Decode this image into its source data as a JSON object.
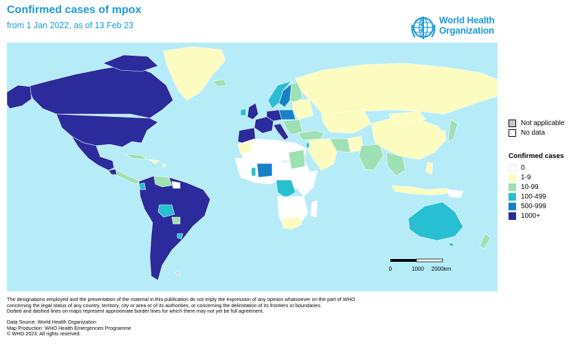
{
  "header": {
    "title": "Confirmed cases of mpox",
    "subtitle": "from 1 Jan 2022, as of 13 Feb 23"
  },
  "logo": {
    "line1": "World Health",
    "line2": "Organization",
    "icon": "who-emblem-icon"
  },
  "legend": {
    "other": [
      {
        "label": "Not applicable",
        "color": "#c8c8c8"
      },
      {
        "label": "No data",
        "color": "#ffffff"
      }
    ],
    "heading": "Confirmed cases",
    "classes": [
      {
        "label": "0",
        "color": "#ffffff"
      },
      {
        "label": "1-9",
        "color": "#fcfcc0"
      },
      {
        "label": "10-99",
        "color": "#9fe0b4"
      },
      {
        "label": "100-499",
        "color": "#28bfd2"
      },
      {
        "label": "500-999",
        "color": "#1780c8"
      },
      {
        "label": "1000+",
        "color": "#2c2b9c"
      }
    ]
  },
  "scalebar": {
    "ticks": [
      "0",
      "1000",
      "2000km"
    ]
  },
  "colors": {
    "ocean": "#b5ecf7",
    "border": "#ffffff"
  },
  "disclaimer": {
    "line1": "The designations employed and the presentation of the material in this publication do not imply the expression of any opinion whatsoever on the part of WHO",
    "line2": "concerning the legal status of any country, territory, city or area or of its authorities, or concerning the delimitation of its frontiers or boundaries.",
    "line3": "Dotted and dashed lines on maps represent approximate border lines for which there may not yet be full agreement."
  },
  "credits": {
    "source": "Data Source: World Health Organization",
    "production": "Map Production: WHO Health Emergencies Programme",
    "copyright": "© WHO 2023. All rights reserved."
  }
}
